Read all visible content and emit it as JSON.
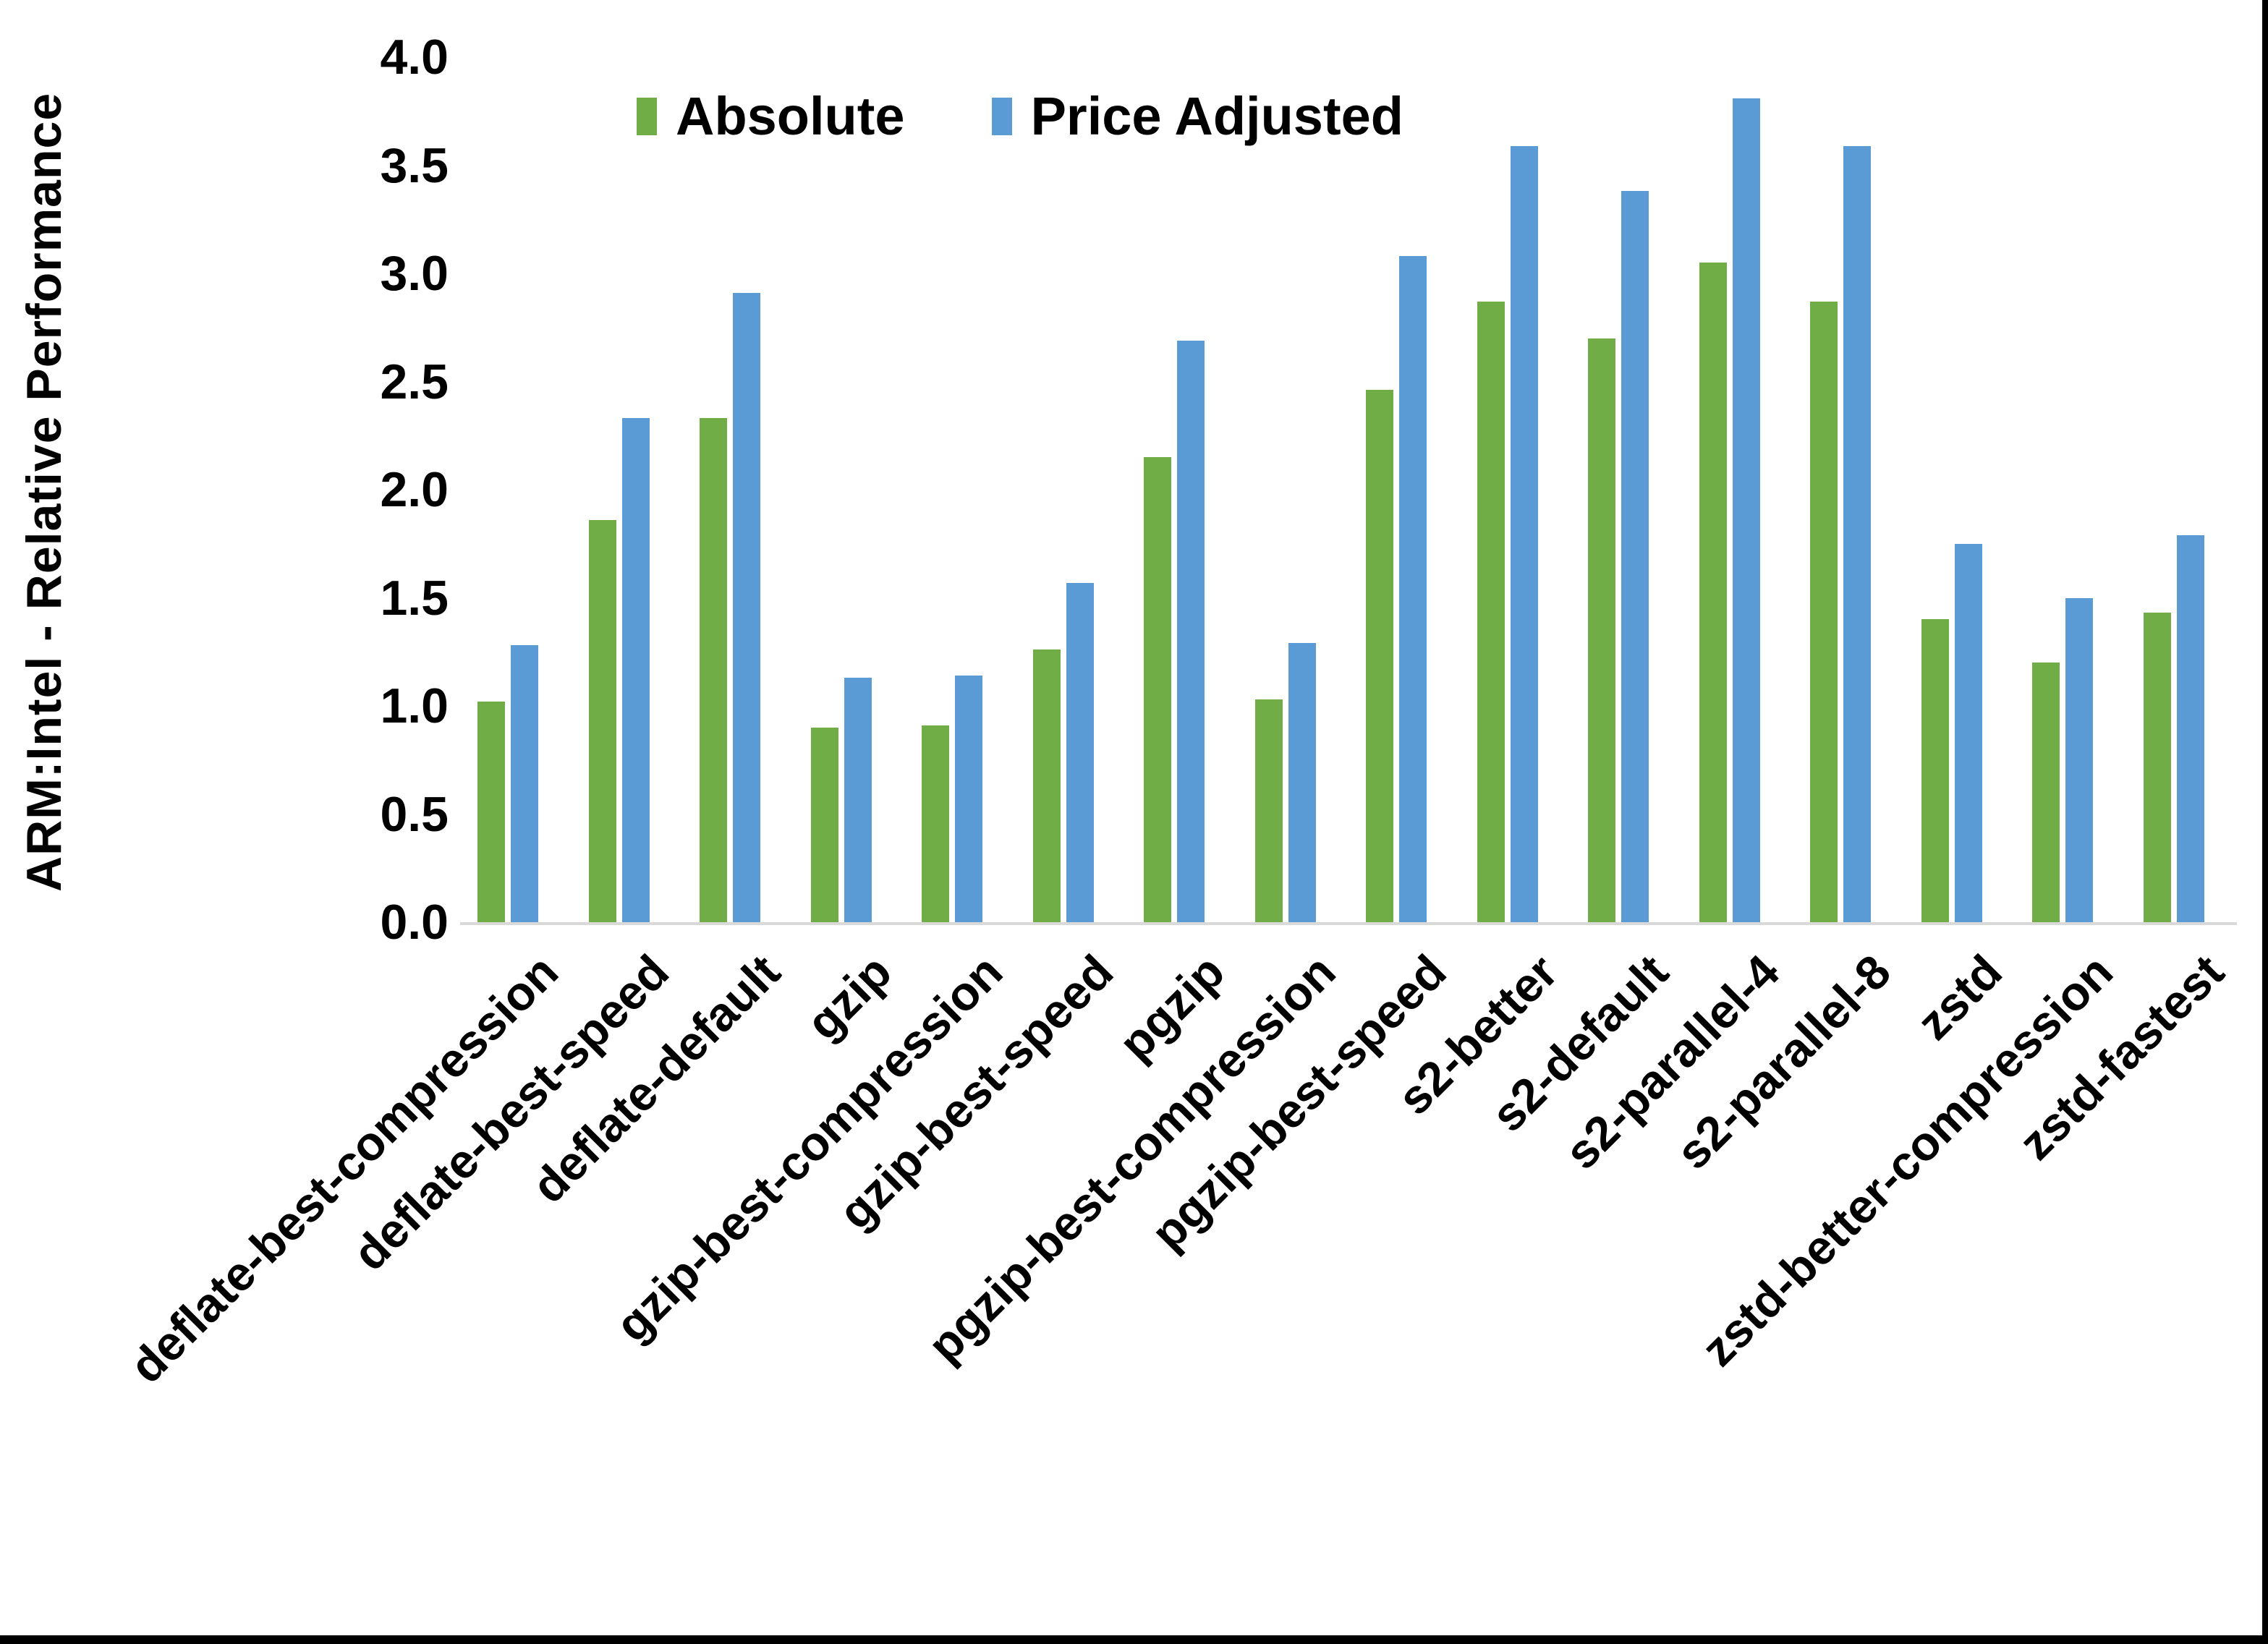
{
  "chart_data": {
    "type": "bar",
    "title": "",
    "xlabel": "",
    "ylabel": "ARM:Intel - Relative Performance",
    "ylim": [
      0.0,
      4.0
    ],
    "ytick_step": 0.5,
    "yticks": [
      "0.0",
      "0.5",
      "1.0",
      "1.5",
      "2.0",
      "2.5",
      "3.0",
      "3.5",
      "4.0"
    ],
    "grid": false,
    "legend_position": "top-center",
    "axis_line_color": "#d9d9d9",
    "frame_color": "#000000",
    "categories": [
      "deflate-best-compression",
      "deflate-best-speed",
      "deflate-default",
      "gzip",
      "gzip-best-compression",
      "gzip-best-speed",
      "pgzip",
      "pgzip-best-compression",
      "pgzip-best-speed",
      "s2-better",
      "s2-default",
      "s2-parallel-4",
      "s2-parallel-8",
      "zstd",
      "zstd-better-compression",
      "zstd-fastest"
    ],
    "series": [
      {
        "name": "Absolute",
        "color": "#70AD47",
        "values": [
          1.02,
          1.86,
          2.33,
          0.9,
          0.91,
          1.26,
          2.15,
          1.03,
          2.46,
          2.87,
          2.7,
          3.05,
          2.87,
          1.4,
          1.2,
          1.43
        ]
      },
      {
        "name": "Price Adjusted",
        "color": "#5B9BD5",
        "values": [
          1.28,
          2.33,
          2.91,
          1.13,
          1.14,
          1.57,
          2.69,
          1.29,
          3.08,
          3.59,
          3.38,
          3.81,
          3.59,
          1.75,
          1.5,
          1.79
        ]
      }
    ]
  }
}
